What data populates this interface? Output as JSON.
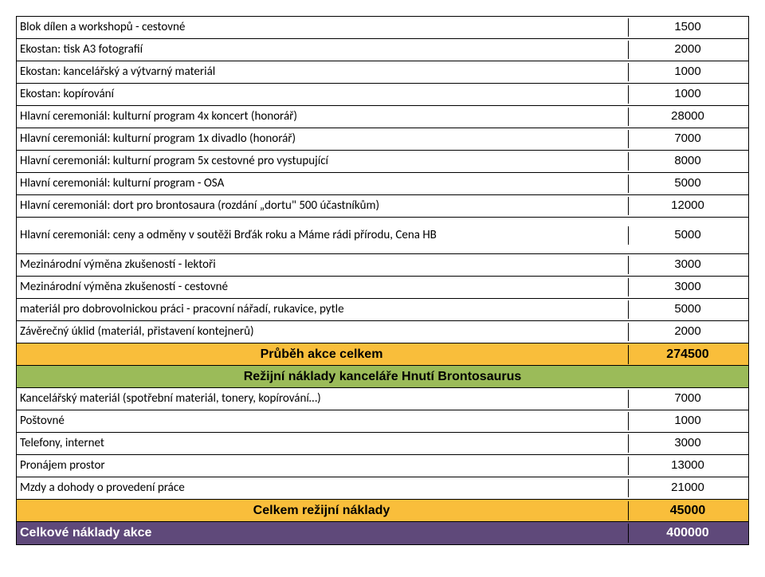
{
  "rows": [
    {
      "label": "Blok dílen a workshopů - cestovné",
      "value": "1500"
    },
    {
      "label": "Ekostan: tisk A3 fotografií",
      "value": "2000"
    },
    {
      "label": "Ekostan: kancelářský a výtvarný materiál",
      "value": "1000"
    },
    {
      "label": "Ekostan: kopírování",
      "value": "1000"
    },
    {
      "label": "Hlavní ceremoniál: kulturní program 4x koncert (honorář)",
      "value": "28000"
    },
    {
      "label": "Hlavní ceremoniál: kulturní program 1x divadlo (honorář)",
      "value": "7000"
    },
    {
      "label": "Hlavní ceremoniál: kulturní program 5x cestovné pro vystupující",
      "value": "8000"
    },
    {
      "label": "Hlavní ceremoniál: kulturní program - OSA",
      "value": "5000"
    },
    {
      "label": "Hlavní ceremoniál: dort pro brontosaura (rozdání „dortu\" 500 účastníkům)",
      "value": "12000"
    },
    {
      "label": "Hlavní ceremoniál: ceny a odměny v soutěži Brďák roku a Máme rádi přírodu, Cena HB",
      "value": "5000",
      "tall": true
    },
    {
      "label": "Mezinárodní výměna zkušeností - lektoři",
      "value": "3000"
    },
    {
      "label": "Mezinárodní výměna zkušeností - cestovné",
      "value": "3000"
    },
    {
      "label": "materiál pro dobrovolnickou práci - pracovní nářadí, rukavice, pytle",
      "value": "5000"
    },
    {
      "label": "Závěrečný úklid (materiál, přistavení kontejnerů)",
      "value": "2000"
    }
  ],
  "subtotal1": {
    "label": "Průběh akce celkem",
    "value": "274500"
  },
  "section_overhead": "Režijní náklady kanceláře Hnutí Brontosaurus",
  "rows2": [
    {
      "label": "Kancelářský materiál (spotřební materiál, tonery, kopírování…)",
      "value": "7000"
    },
    {
      "label": "Poštovné",
      "value": "1000"
    },
    {
      "label": "Telefony, internet",
      "value": "3000"
    },
    {
      "label": "Pronájem prostor",
      "value": "13000"
    },
    {
      "label": "Mzdy a dohody o provedení práce",
      "value": "21000"
    }
  ],
  "subtotal2": {
    "label": "Celkem režijní náklady",
    "value": "45000"
  },
  "total": {
    "label": "Celkové náklady akce",
    "value": "400000"
  },
  "colors": {
    "orange": "#f9be3b",
    "green": "#9bbb59",
    "purple": "#5f497a",
    "border": "#000000",
    "white_text": "#ffffff"
  }
}
